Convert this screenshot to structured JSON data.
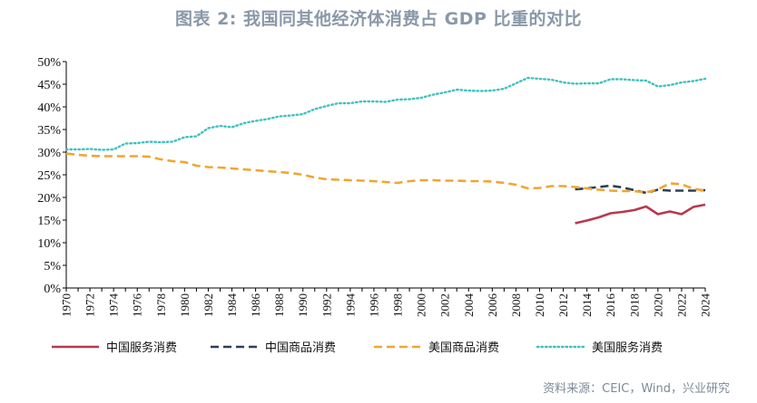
{
  "title": "图表 2:   我国同其他经济体消费占 GDP 比重的对比",
  "source": "资料来源：CEIC，Wind，兴业研究",
  "chart_data": {
    "type": "line",
    "x": [
      1970,
      1971,
      1972,
      1973,
      1974,
      1975,
      1976,
      1977,
      1978,
      1979,
      1980,
      1981,
      1982,
      1983,
      1984,
      1985,
      1986,
      1987,
      1988,
      1989,
      1990,
      1991,
      1992,
      1993,
      1994,
      1995,
      1996,
      1997,
      1998,
      1999,
      2000,
      2001,
      2002,
      2003,
      2004,
      2005,
      2006,
      2007,
      2008,
      2009,
      2010,
      2011,
      2012,
      2013,
      2014,
      2015,
      2016,
      2017,
      2018,
      2019,
      2020,
      2021,
      2022,
      2023,
      2024
    ],
    "x_tick_labels": [
      "1970",
      "1972",
      "1974",
      "1976",
      "1978",
      "1980",
      "1982",
      "1984",
      "1986",
      "1988",
      "1990",
      "1992",
      "1994",
      "1996",
      "1998",
      "2000",
      "2002",
      "2004",
      "2006",
      "2008",
      "2010",
      "2012",
      "2014",
      "2016",
      "2018",
      "2020",
      "2022",
      "2024"
    ],
    "ylim": [
      0,
      50
    ],
    "y_tick_labels": [
      "0%",
      "5%",
      "10%",
      "15%",
      "20%",
      "25%",
      "30%",
      "35%",
      "40%",
      "45%",
      "50%"
    ],
    "series": [
      {
        "name": "中国服务消费",
        "color": "#b8384e",
        "style": "solid",
        "values": [
          null,
          null,
          null,
          null,
          null,
          null,
          null,
          null,
          null,
          null,
          null,
          null,
          null,
          null,
          null,
          null,
          null,
          null,
          null,
          null,
          null,
          null,
          null,
          null,
          null,
          null,
          null,
          null,
          null,
          null,
          null,
          null,
          null,
          null,
          null,
          null,
          null,
          null,
          null,
          null,
          null,
          null,
          null,
          14.3,
          14.9,
          15.6,
          16.5,
          16.8,
          17.2,
          18.0,
          16.3,
          16.9,
          16.3,
          17.9,
          18.4
        ]
      },
      {
        "name": "中国商品消费",
        "color": "#2d3e57",
        "style": "dashed",
        "values": [
          null,
          null,
          null,
          null,
          null,
          null,
          null,
          null,
          null,
          null,
          null,
          null,
          null,
          null,
          null,
          null,
          null,
          null,
          null,
          null,
          null,
          null,
          null,
          null,
          null,
          null,
          null,
          null,
          null,
          null,
          null,
          null,
          null,
          null,
          null,
          null,
          null,
          null,
          null,
          null,
          null,
          null,
          null,
          21.8,
          22.0,
          22.3,
          22.6,
          22.2,
          21.6,
          21.0,
          21.7,
          21.5,
          21.5,
          21.5,
          21.6
        ]
      },
      {
        "name": "美国商品消费",
        "color": "#f0a630",
        "style": "dashed",
        "values": [
          29.7,
          29.4,
          29.2,
          29.1,
          29.1,
          29.1,
          29.1,
          29.0,
          28.4,
          28.0,
          27.8,
          27.0,
          26.7,
          26.6,
          26.4,
          26.2,
          26.0,
          25.8,
          25.6,
          25.4,
          25.0,
          24.4,
          24.0,
          23.9,
          23.8,
          23.7,
          23.6,
          23.4,
          23.2,
          23.6,
          23.8,
          23.8,
          23.7,
          23.7,
          23.6,
          23.6,
          23.5,
          23.2,
          22.8,
          22.0,
          22.1,
          22.5,
          22.5,
          22.3,
          22.0,
          21.7,
          21.5,
          21.4,
          21.4,
          21.1,
          21.8,
          23.1,
          22.9,
          21.9,
          21.5
        ]
      },
      {
        "name": "美国服务消费",
        "color": "#3fc1c0",
        "style": "dotted",
        "values": [
          30.6,
          30.6,
          30.7,
          30.5,
          30.6,
          31.9,
          32.0,
          32.3,
          32.2,
          32.3,
          33.3,
          33.5,
          35.3,
          35.8,
          35.5,
          36.4,
          36.9,
          37.3,
          37.9,
          38.1,
          38.4,
          39.5,
          40.2,
          40.8,
          40.8,
          41.2,
          41.2,
          41.1,
          41.6,
          41.7,
          42.0,
          42.7,
          43.2,
          43.8,
          43.6,
          43.5,
          43.6,
          44.0,
          45.2,
          46.4,
          46.2,
          46.0,
          45.4,
          45.1,
          45.2,
          45.2,
          46.1,
          46.1,
          45.9,
          45.8,
          44.5,
          44.8,
          45.4,
          45.7,
          46.2
        ]
      }
    ]
  }
}
